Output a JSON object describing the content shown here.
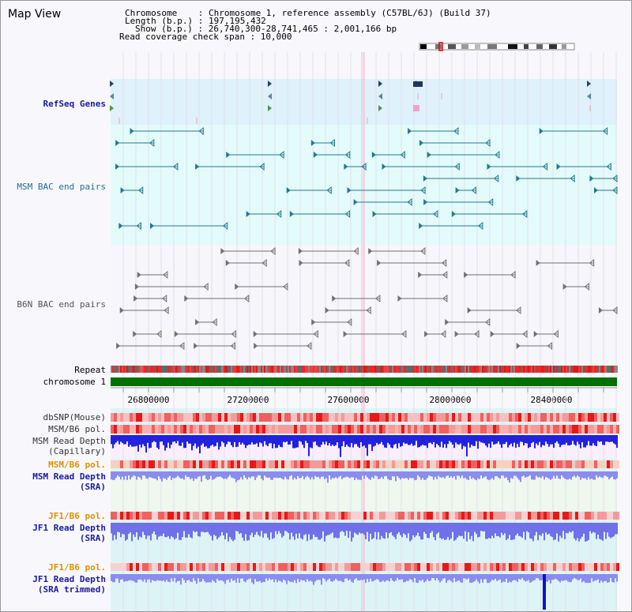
{
  "title": "Map View",
  "info": {
    "chromosome": "Chromosome    : Chromosome 1, reference assembly (C57BL/6J) (Build 37)",
    "length": "Length (b.p.) : 197,195,432",
    "show": "Show (b.p.) : 26,740,300-28,741,465 : 2,001,166 bp",
    "coverage": "Read coverage check span : 10,000"
  },
  "tracks": {
    "refseq": "RefSeq Genes",
    "msm_bac": "MSM BAC end pairs",
    "b6n_bac": "B6N BAC end pairs",
    "repeat": "Repeat",
    "chromosome": "chromosome 1",
    "dbsnp": "dbSNP(Mouse)",
    "msm_b6_pol_1": "MSM/B6 pol.",
    "msm_depth_cap_1": "MSM Read Depth",
    "msm_depth_cap_2": "(Capillary)",
    "msm_b6_pol_2": "MSM/B6 pol.",
    "msm_depth_sra_1": "MSM Read Depth",
    "msm_depth_sra_2": "(SRA)",
    "jf1_b6_pol_1": "JF1/B6 pol.",
    "jf1_depth_sra_1": "JF1 Read Depth",
    "jf1_depth_sra_2": "(SRA)",
    "jf1_b6_pol_2": "JF1/B6 pol.",
    "jf1_depth_trim_1": "JF1 Read Depth",
    "jf1_depth_trim_2": "(SRA trimmed)"
  },
  "positions": [
    "26800000",
    "27200000",
    "27600000",
    "28000000",
    "28400000"
  ],
  "colors": {
    "refseq_bg": "#dff1fa",
    "msm_bg": "#e4fbfb",
    "chromosome": "#007000",
    "depth_capillary": "#2222dd",
    "depth_sra": "#8c8cee",
    "pol_red": "#f03030"
  }
}
